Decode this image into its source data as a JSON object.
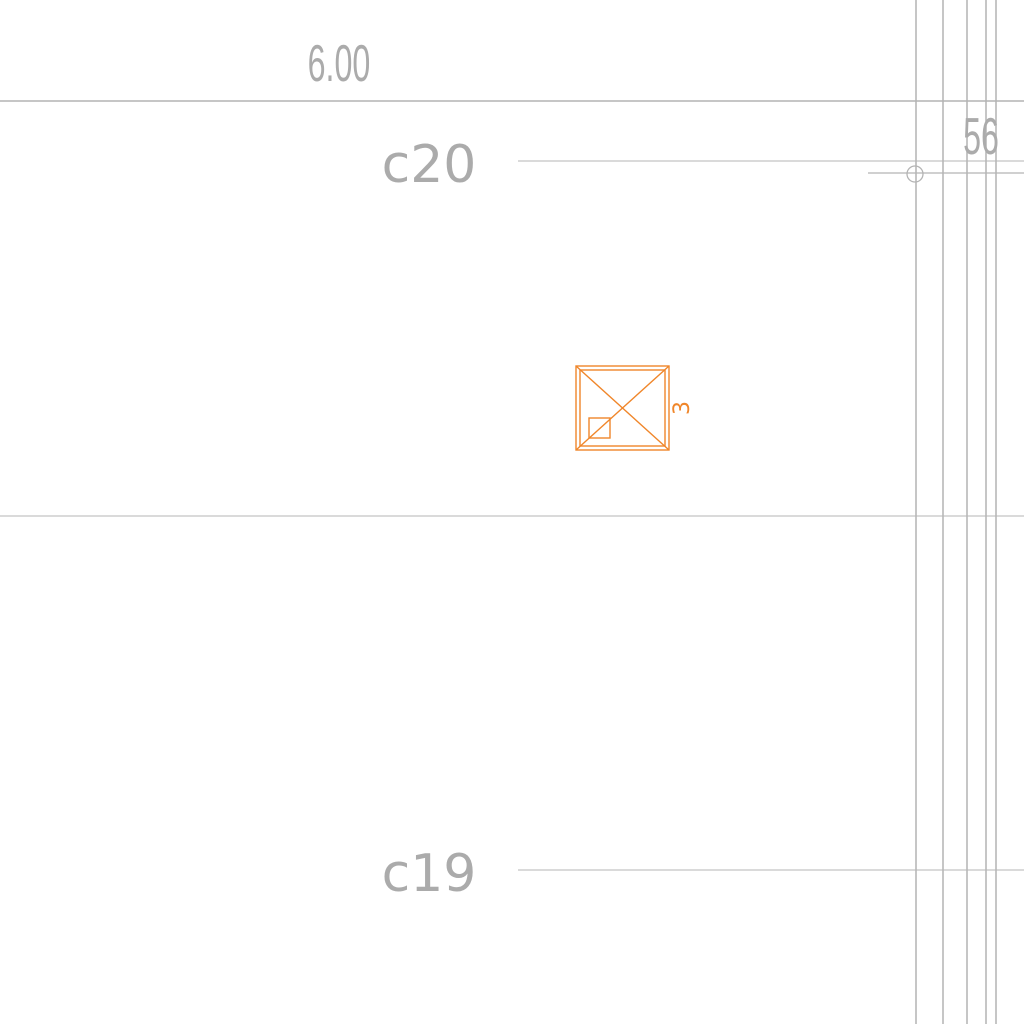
{
  "drawing": {
    "dimension_top": "6.00",
    "dimension_right": "56",
    "grid_labels": {
      "upper": "c20",
      "lower": "c19"
    },
    "symbol_number": "3"
  },
  "colors": {
    "line": "#b4b4b4",
    "text": "#ababab",
    "accent": "#f0862a",
    "background": "#ffffff"
  }
}
